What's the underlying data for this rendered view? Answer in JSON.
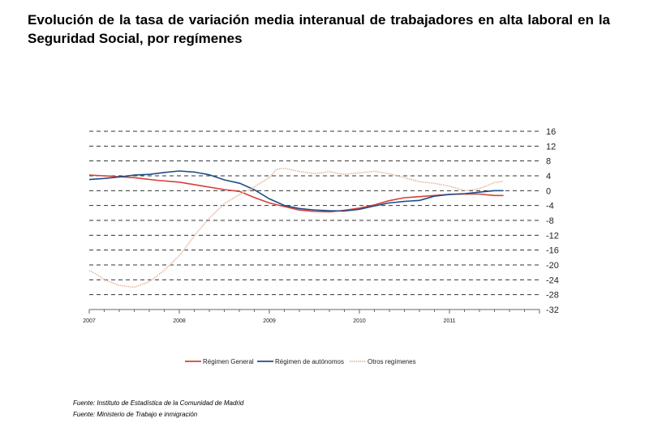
{
  "title": "Evolución de la tasa de variación media interanual de trabajadores en alta laboral en la Seguridad Social, por  regímenes",
  "sources": [
    "Fuente: Instituto de Estadística de la Comunidad de Madrid",
    "Fuente: Ministerio de Trabajo e inmigración"
  ],
  "chart_data": {
    "type": "line",
    "title": "",
    "xlabel": "",
    "ylabel": "",
    "x_ticks": [
      "2007",
      "2008",
      "2009",
      "2010",
      "2011"
    ],
    "xlim": [
      2007.0,
      2012.0
    ],
    "ylim": [
      -32,
      16
    ],
    "y_ticks": [
      "16",
      "12",
      "8",
      "4",
      "0",
      "-4",
      "-8",
      "-12",
      "-16",
      "-20",
      "-24",
      "-28",
      "-32"
    ],
    "grid": true,
    "legend": "bottom",
    "series": [
      {
        "name": "Régimen General",
        "color": "#d6403a",
        "style": "solid",
        "points": [
          [
            2007.0,
            4.2
          ],
          [
            2007.25,
            3.9
          ],
          [
            2007.5,
            3.5
          ],
          [
            2007.75,
            2.8
          ],
          [
            2008.0,
            2.3
          ],
          [
            2008.25,
            1.3
          ],
          [
            2008.5,
            0.3
          ],
          [
            2008.67,
            -0.2
          ],
          [
            2008.83,
            -1.8
          ],
          [
            2009.0,
            -3.3
          ],
          [
            2009.17,
            -4.3
          ],
          [
            2009.33,
            -5.2
          ],
          [
            2009.5,
            -5.6
          ],
          [
            2009.67,
            -5.7
          ],
          [
            2009.83,
            -5.3
          ],
          [
            2010.0,
            -4.7
          ],
          [
            2010.17,
            -3.8
          ],
          [
            2010.33,
            -2.7
          ],
          [
            2010.5,
            -1.9
          ],
          [
            2010.67,
            -1.6
          ],
          [
            2010.83,
            -1.3
          ],
          [
            2011.0,
            -1.0
          ],
          [
            2011.17,
            -0.9
          ],
          [
            2011.33,
            -0.9
          ],
          [
            2011.5,
            -1.3
          ],
          [
            2011.6,
            -1.3
          ]
        ]
      },
      {
        "name": "Régimen de autónomos",
        "color": "#1f4e85",
        "style": "solid",
        "points": [
          [
            2007.0,
            3.0
          ],
          [
            2007.17,
            3.3
          ],
          [
            2007.33,
            3.7
          ],
          [
            2007.5,
            4.2
          ],
          [
            2007.67,
            4.4
          ],
          [
            2007.83,
            4.9
          ],
          [
            2008.0,
            5.3
          ],
          [
            2008.17,
            5.0
          ],
          [
            2008.33,
            4.3
          ],
          [
            2008.5,
            2.9
          ],
          [
            2008.67,
            2.0
          ],
          [
            2008.83,
            0.3
          ],
          [
            2009.0,
            -2.2
          ],
          [
            2009.17,
            -4.0
          ],
          [
            2009.33,
            -4.8
          ],
          [
            2009.5,
            -5.2
          ],
          [
            2009.67,
            -5.4
          ],
          [
            2009.83,
            -5.5
          ],
          [
            2010.0,
            -5.0
          ],
          [
            2010.17,
            -4.1
          ],
          [
            2010.33,
            -3.3
          ],
          [
            2010.5,
            -2.9
          ],
          [
            2010.67,
            -2.6
          ],
          [
            2010.83,
            -1.5
          ],
          [
            2011.0,
            -1.0
          ],
          [
            2011.17,
            -0.8
          ],
          [
            2011.33,
            -0.4
          ],
          [
            2011.5,
            0.0
          ],
          [
            2011.6,
            0.0
          ]
        ]
      },
      {
        "name": "Otros regímenes",
        "color": "#e8b9a2",
        "style": "dotted",
        "points": [
          [
            2007.0,
            -21.5
          ],
          [
            2007.08,
            -22.5
          ],
          [
            2007.17,
            -24.0
          ],
          [
            2007.33,
            -25.5
          ],
          [
            2007.5,
            -26.0
          ],
          [
            2007.67,
            -24.5
          ],
          [
            2007.83,
            -21.5
          ],
          [
            2008.0,
            -17.5
          ],
          [
            2008.08,
            -15.0
          ],
          [
            2008.17,
            -12.0
          ],
          [
            2008.33,
            -7.5
          ],
          [
            2008.5,
            -3.5
          ],
          [
            2008.67,
            -1.0
          ],
          [
            2008.83,
            1.0
          ],
          [
            2009.0,
            3.5
          ],
          [
            2009.08,
            5.8
          ],
          [
            2009.17,
            6.0
          ],
          [
            2009.33,
            5.2
          ],
          [
            2009.5,
            4.6
          ],
          [
            2009.67,
            5.1
          ],
          [
            2009.83,
            4.4
          ],
          [
            2010.0,
            4.8
          ],
          [
            2010.17,
            5.2
          ],
          [
            2010.33,
            4.6
          ],
          [
            2010.5,
            3.5
          ],
          [
            2010.67,
            2.4
          ],
          [
            2010.83,
            2.0
          ],
          [
            2011.0,
            1.2
          ],
          [
            2011.17,
            0.0
          ],
          [
            2011.33,
            0.5
          ],
          [
            2011.5,
            2.2
          ],
          [
            2011.6,
            2.5
          ]
        ]
      }
    ]
  }
}
